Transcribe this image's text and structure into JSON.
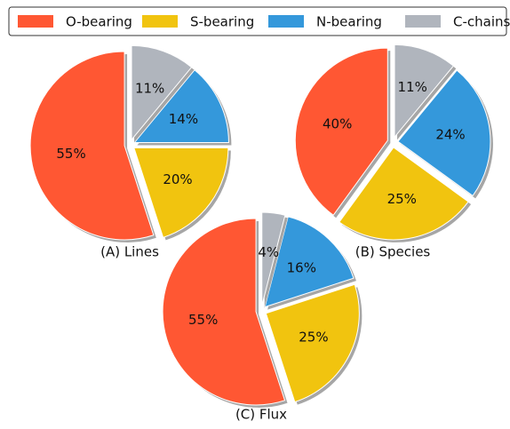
{
  "legend": {
    "labels": [
      "O-bearing",
      "S-bearing",
      "N-bearing",
      "C-chains"
    ],
    "colors": [
      "#ff5733",
      "#f1c40f",
      "#3498db",
      "#b0b5bd"
    ]
  },
  "chart_data": [
    {
      "type": "pie",
      "title": "(A) Lines",
      "values": [
        55,
        20,
        14,
        11
      ],
      "value_labels": [
        "55%",
        "20%",
        "14%",
        "11%"
      ]
    },
    {
      "type": "pie",
      "title": "(B) Species",
      "values": [
        40,
        25,
        24,
        11
      ],
      "value_labels": [
        "40%",
        "25%",
        "24%",
        "11%"
      ]
    },
    {
      "type": "pie",
      "title": "(C) Flux",
      "values": [
        55,
        25,
        16,
        4
      ],
      "value_labels": [
        "55%",
        "25%",
        "16%",
        "4%"
      ]
    }
  ]
}
